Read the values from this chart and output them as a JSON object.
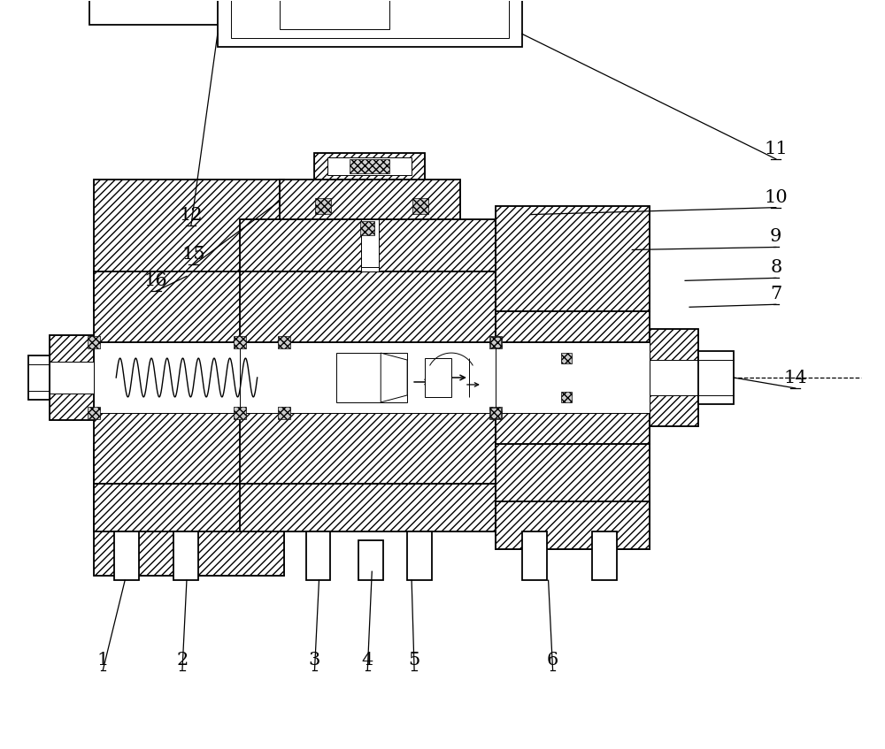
{
  "bg_color": "#ffffff",
  "line_color": "#000000",
  "label_color": "#000000",
  "fig_width": 10.0,
  "fig_height": 8.47,
  "label_fontsize": 15,
  "lw_main": 1.3,
  "lw_thin": 0.7,
  "lw_hatch": 0.4
}
